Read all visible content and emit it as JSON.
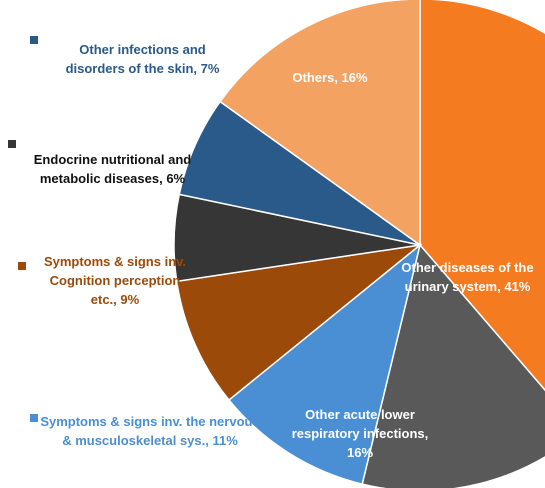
{
  "chart_data": {
    "type": "pie",
    "values": [
      41,
      16,
      11,
      9,
      6,
      7,
      16
    ],
    "value_labels": [
      "Other diseases of the urinary system, 41%",
      "Other acute lower respiratory infections, 16%",
      "Symptoms & signs inv. the nervous & musculoskeletal sys., 11%",
      "Symptoms & signs inv. Cognition perception etc., 9%",
      "Endocrine nutritional and metabolic diseases, 6%",
      "Other infections and disorders of the skin, 7%",
      "Others, 16%"
    ],
    "colors": [
      "#f47b20",
      "#595959",
      "#4a8fd4",
      "#9c4a0a",
      "#363636",
      "#2a5a8a",
      "#f4a262"
    ]
  }
}
